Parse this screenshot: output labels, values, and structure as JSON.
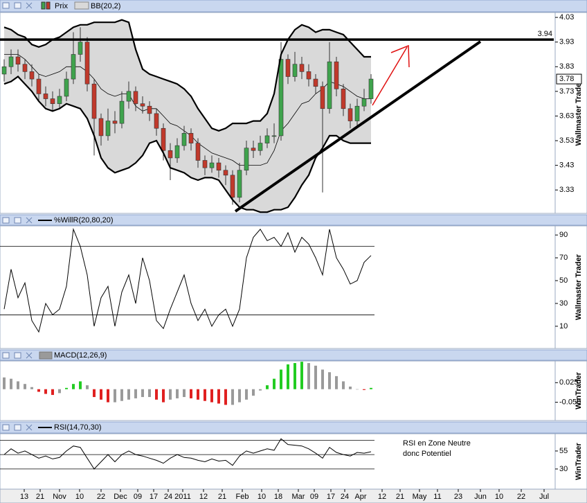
{
  "chart_data": [
    {
      "type": "candlestick",
      "name": "Prix",
      "colors": {
        "up": "#3fa34d",
        "down": "#c0392b",
        "wick": "#333333"
      },
      "x": [
        3,
        8,
        13,
        18,
        23,
        28,
        33,
        38,
        43,
        48,
        53,
        58,
        63,
        68,
        73,
        78,
        83,
        88,
        93,
        98,
        103,
        108,
        113,
        118,
        123,
        128,
        133,
        138,
        143,
        148,
        153,
        158,
        163,
        168,
        173,
        178,
        183,
        188,
        193,
        198,
        203,
        208,
        213,
        218,
        223,
        228,
        233,
        238,
        243,
        248,
        253,
        258,
        263,
        268
      ],
      "xlim": [
        0,
        400
      ],
      "open": [
        3.8,
        3.83,
        3.87,
        3.84,
        3.81,
        3.78,
        3.72,
        3.7,
        3.68,
        3.71,
        3.78,
        3.88,
        3.93,
        3.76,
        3.62,
        3.55,
        3.61,
        3.6,
        3.69,
        3.73,
        3.68,
        3.67,
        3.64,
        3.58,
        3.49,
        3.46,
        3.51,
        3.56,
        3.52,
        3.45,
        3.42,
        3.44,
        3.41,
        3.39,
        3.3,
        3.41,
        3.5,
        3.49,
        3.52,
        3.55,
        3.55,
        3.86,
        3.79,
        3.84,
        3.81,
        3.78,
        3.75,
        3.66,
        3.85,
        3.74,
        3.66,
        3.61,
        3.67,
        3.7
      ],
      "high": [
        3.86,
        3.9,
        3.9,
        3.86,
        3.84,
        3.8,
        3.75,
        3.73,
        3.74,
        3.81,
        3.97,
        3.99,
        3.95,
        3.78,
        3.64,
        3.66,
        3.65,
        3.73,
        3.77,
        3.75,
        3.71,
        3.69,
        3.66,
        3.6,
        3.52,
        3.54,
        3.59,
        3.58,
        3.54,
        3.47,
        3.47,
        3.46,
        3.43,
        3.41,
        3.44,
        3.53,
        3.53,
        3.55,
        3.58,
        3.6,
        3.93,
        3.88,
        3.89,
        3.87,
        3.84,
        3.8,
        3.77,
        3.93,
        3.87,
        3.76,
        3.68,
        3.7,
        3.74,
        3.8
      ],
      "low": [
        3.77,
        3.8,
        3.81,
        3.78,
        3.75,
        3.69,
        3.67,
        3.65,
        3.66,
        3.69,
        3.76,
        3.85,
        3.73,
        3.47,
        3.51,
        3.53,
        3.56,
        3.58,
        3.66,
        3.65,
        3.64,
        3.61,
        3.55,
        3.45,
        3.37,
        3.44,
        3.49,
        3.49,
        3.42,
        3.39,
        3.4,
        3.38,
        3.35,
        3.27,
        3.28,
        3.39,
        3.46,
        3.47,
        3.5,
        3.52,
        3.53,
        3.76,
        3.77,
        3.78,
        3.75,
        3.72,
        3.32,
        3.64,
        3.71,
        3.63,
        3.58,
        3.59,
        3.65,
        3.68
      ],
      "close": [
        3.83,
        3.87,
        3.84,
        3.81,
        3.78,
        3.72,
        3.7,
        3.68,
        3.71,
        3.78,
        3.88,
        3.93,
        3.76,
        3.62,
        3.55,
        3.61,
        3.6,
        3.69,
        3.73,
        3.68,
        3.67,
        3.64,
        3.58,
        3.49,
        3.46,
        3.51,
        3.56,
        3.52,
        3.45,
        3.42,
        3.44,
        3.41,
        3.39,
        3.3,
        3.41,
        3.5,
        3.49,
        3.52,
        3.55,
        3.55,
        3.86,
        3.79,
        3.84,
        3.81,
        3.78,
        3.75,
        3.66,
        3.85,
        3.74,
        3.66,
        3.61,
        3.67,
        3.7,
        3.78
      ],
      "bands": {
        "name": "BB(20,2)",
        "color": "#000000",
        "fill": "#d9d9d9",
        "upper": [
          3.99,
          3.98,
          3.96,
          3.95,
          3.92,
          3.91,
          3.92,
          3.94,
          3.95,
          3.97,
          3.99,
          4.0,
          4.0,
          4.01,
          4.01,
          4.01,
          4.01,
          4.02,
          4.01,
          3.9,
          3.82,
          3.8,
          3.79,
          3.78,
          3.77,
          3.76,
          3.74,
          3.71,
          3.66,
          3.62,
          3.58,
          3.57,
          3.58,
          3.6,
          3.6,
          3.6,
          3.61,
          3.61,
          3.64,
          3.72,
          3.88,
          3.94,
          3.98,
          4.0,
          3.99,
          3.97,
          3.98,
          3.98,
          3.97,
          3.96,
          3.93,
          3.9,
          3.87,
          3.87
        ],
        "middle": [
          3.88,
          3.88,
          3.88,
          3.86,
          3.83,
          3.8,
          3.79,
          3.8,
          3.81,
          3.83,
          3.83,
          3.83,
          3.81,
          3.78,
          3.74,
          3.72,
          3.71,
          3.72,
          3.72,
          3.67,
          3.65,
          3.66,
          3.66,
          3.63,
          3.6,
          3.59,
          3.57,
          3.55,
          3.52,
          3.5,
          3.48,
          3.47,
          3.46,
          3.45,
          3.43,
          3.43,
          3.43,
          3.43,
          3.44,
          3.49,
          3.57,
          3.6,
          3.64,
          3.68,
          3.69,
          3.72,
          3.74,
          3.77,
          3.76,
          3.75,
          3.73,
          3.71,
          3.7,
          3.7
        ],
        "lower": [
          3.76,
          3.77,
          3.79,
          3.76,
          3.73,
          3.69,
          3.66,
          3.65,
          3.66,
          3.68,
          3.67,
          3.66,
          3.62,
          3.55,
          3.46,
          3.42,
          3.4,
          3.41,
          3.42,
          3.44,
          3.47,
          3.52,
          3.53,
          3.48,
          3.42,
          3.41,
          3.4,
          3.38,
          3.37,
          3.38,
          3.38,
          3.37,
          3.33,
          3.29,
          3.26,
          3.25,
          3.25,
          3.24,
          3.24,
          3.25,
          3.25,
          3.26,
          3.3,
          3.35,
          3.39,
          3.46,
          3.5,
          3.55,
          3.55,
          3.53,
          3.52,
          3.52,
          3.52,
          3.52
        ]
      },
      "resistance": 3.94,
      "last_price": 3.78,
      "ylim": [
        3.235,
        4.05
      ],
      "yticks": [
        4.03,
        3.93,
        3.83,
        3.73,
        3.63,
        3.53,
        3.43,
        3.33
      ],
      "watermark": "Wallmaster Trader"
    },
    {
      "type": "line",
      "series": [
        {
          "name": "%WillR(20,80,20)",
          "color": "#000000",
          "values": [
            25,
            60,
            35,
            48,
            15,
            5,
            30,
            20,
            25,
            45,
            95,
            80,
            55,
            10,
            35,
            45,
            10,
            40,
            55,
            30,
            70,
            50,
            15,
            8,
            25,
            40,
            55,
            30,
            15,
            25,
            10,
            20,
            25,
            10,
            25,
            70,
            88,
            95,
            85,
            88,
            80,
            92,
            75,
            88,
            82,
            70,
            55,
            95,
            70,
            60,
            47,
            50,
            66,
            72
          ]
        }
      ],
      "hlines": [
        80,
        20
      ],
      "ylim": [
        -9.5,
        98
      ],
      "yticks": [
        90,
        70,
        50,
        30,
        10
      ],
      "watermark": "Wallmaster Trader"
    },
    {
      "type": "bar",
      "colors": {
        "up": "#22cc22",
        "down": "#e02020",
        "neutral": "#9a9a9a"
      },
      "series": [
        {
          "name": "MACD(12,26,9)",
          "color": "#9a9a9a",
          "values": [
            0.045,
            0.04,
            0.03,
            0.02,
            0.008,
            -0.01,
            -0.018,
            -0.022,
            -0.015,
            0.005,
            0.02,
            0.03,
            0.015,
            -0.03,
            -0.04,
            -0.05,
            -0.05,
            -0.045,
            -0.04,
            -0.035,
            -0.03,
            -0.03,
            -0.04,
            -0.05,
            -0.04,
            -0.035,
            -0.03,
            -0.035,
            -0.04,
            -0.045,
            -0.05,
            -0.055,
            -0.06,
            -0.06,
            -0.05,
            -0.04,
            -0.025,
            -0.005,
            0.015,
            0.04,
            0.075,
            0.095,
            0.1,
            0.105,
            0.1,
            0.09,
            0.075,
            0.065,
            0.05,
            0.03,
            0.01,
            0,
            -0.003,
            0.005
          ]
        }
      ],
      "ylim": [
        -0.12,
        0.108
      ],
      "yticks": [
        0.025,
        {
          "value": -0.05,
          "label": "-0.050"
        }
      ],
      "watermark": "WinTrader"
    },
    {
      "type": "line",
      "series": [
        {
          "name": "RSI(14,70,30)",
          "color": "#000000",
          "values": [
            50,
            58,
            52,
            55,
            50,
            45,
            48,
            44,
            46,
            55,
            62,
            60,
            45,
            30,
            40,
            50,
            40,
            50,
            55,
            50,
            48,
            45,
            42,
            38,
            45,
            50,
            46,
            45,
            42,
            40,
            44,
            41,
            42,
            35,
            48,
            55,
            52,
            55,
            58,
            56,
            72,
            64,
            63,
            62,
            58,
            52,
            45,
            60,
            53,
            50,
            48,
            53,
            52,
            54
          ]
        }
      ],
      "hlines": [
        70,
        50,
        30
      ],
      "ylim": [
        2,
        79
      ],
      "yticks": [
        55,
        30
      ],
      "annotation": [
        "RSI en Zone Neutre",
        "donc Potentiel"
      ],
      "xticks": [
        {
          "value": 17.5,
          "label": "13"
        },
        {
          "value": 29,
          "label": "21"
        },
        {
          "value": 43,
          "label": "Nov"
        },
        {
          "value": 57.5,
          "label": "10"
        },
        {
          "value": 73,
          "label": "22"
        },
        {
          "value": 87,
          "label": "Dec"
        },
        {
          "value": 99.5,
          "label": "09"
        },
        {
          "value": 111,
          "label": "17"
        },
        {
          "value": 121.5,
          "label": "24"
        },
        {
          "value": 132,
          "label": "2011"
        },
        {
          "value": 147,
          "label": "12"
        },
        {
          "value": 160.5,
          "label": "21"
        },
        {
          "value": 175,
          "label": "Feb"
        },
        {
          "value": 189,
          "label": "10"
        },
        {
          "value": 201,
          "label": "18"
        },
        {
          "value": 215.5,
          "label": "Mar"
        },
        {
          "value": 227,
          "label": "09"
        },
        {
          "value": 239,
          "label": "17"
        },
        {
          "value": 249,
          "label": "24"
        },
        {
          "value": 260.5,
          "label": "Apr"
        },
        {
          "value": 276,
          "label": "12"
        },
        {
          "value": 289,
          "label": "21"
        },
        {
          "value": 303,
          "label": "May"
        },
        {
          "value": 316,
          "label": "11"
        },
        {
          "value": 331,
          "label": "23"
        },
        {
          "value": 347,
          "label": "Jun"
        },
        {
          "value": 360.5,
          "label": "10"
        },
        {
          "value": 376.5,
          "label": "22"
        },
        {
          "value": 393,
          "label": "Jul"
        }
      ],
      "watermark": "WinTrader"
    }
  ]
}
